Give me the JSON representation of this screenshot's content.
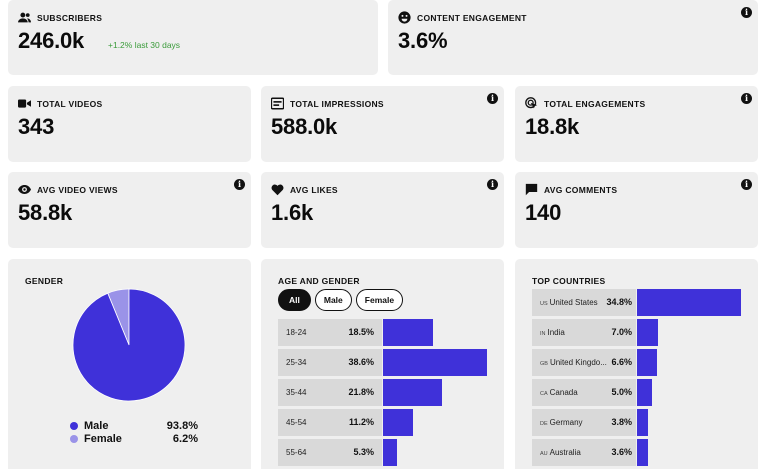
{
  "colors": {
    "accent": "#3f31d9",
    "female": "#9a93e8",
    "delta": "#3a9b3a",
    "card": "#efefef"
  },
  "subscribers": {
    "title": "SUBSCRIBERS",
    "value": "246.0k",
    "delta": "+1.2% last 30 days",
    "icon": "users-icon"
  },
  "content_engagement": {
    "title": "CONTENT ENGAGEMENT",
    "value": "3.6%",
    "icon": "smiley-icon"
  },
  "total_videos": {
    "title": "TOTAL VIDEOS",
    "value": "343",
    "icon": "video-camera-icon"
  },
  "total_impressions": {
    "title": "TOTAL IMPRESSIONS",
    "value": "588.0k",
    "icon": "screen-icon"
  },
  "total_engagements": {
    "title": "TOTAL ENGAGEMENTS",
    "value": "18.8k",
    "icon": "pointer-icon"
  },
  "avg_video_views": {
    "title": "AVG VIDEO VIEWS",
    "value": "58.8k",
    "icon": "eye-icon"
  },
  "avg_likes": {
    "title": "AVG LIKES",
    "value": "1.6k",
    "icon": "heart-icon"
  },
  "avg_comments": {
    "title": "AVG COMMENTS",
    "value": "140",
    "icon": "comment-icon"
  },
  "info_glyph": "i",
  "gender": {
    "title": "GENDER",
    "items": [
      {
        "label": "Male",
        "value": "93.8%"
      },
      {
        "label": "Female",
        "value": "6.2%"
      }
    ]
  },
  "age_gender": {
    "title": "AGE AND GENDER",
    "filters": [
      "All",
      "Male",
      "Female"
    ],
    "active_filter": "All",
    "rows": [
      {
        "label": "18-24",
        "value": "18.5%"
      },
      {
        "label": "25-34",
        "value": "38.6%"
      },
      {
        "label": "35-44",
        "value": "21.8%"
      },
      {
        "label": "45-54",
        "value": "11.2%"
      },
      {
        "label": "55-64",
        "value": "5.3%"
      }
    ]
  },
  "top_countries": {
    "title": "TOP COUNTRIES",
    "rows": [
      {
        "code": "US",
        "name": "United States",
        "value": "34.8%"
      },
      {
        "code": "IN",
        "name": "India",
        "value": "7.0%"
      },
      {
        "code": "GB",
        "name": "United Kingdo...",
        "value": "6.6%"
      },
      {
        "code": "CA",
        "name": "Canada",
        "value": "5.0%"
      },
      {
        "code": "DE",
        "name": "Germany",
        "value": "3.8%"
      },
      {
        "code": "AU",
        "name": "Australia",
        "value": "3.6%"
      }
    ]
  },
  "chart_data": [
    {
      "type": "pie",
      "title": "GENDER",
      "categories": [
        "Male",
        "Female"
      ],
      "values": [
        93.8,
        6.2
      ]
    },
    {
      "type": "bar",
      "title": "AGE AND GENDER",
      "categories": [
        "18-24",
        "25-34",
        "35-44",
        "45-54",
        "55-64"
      ],
      "values": [
        18.5,
        38.6,
        21.8,
        11.2,
        5.3
      ]
    },
    {
      "type": "bar",
      "title": "TOP COUNTRIES",
      "categories": [
        "United States",
        "India",
        "United Kingdo...",
        "Canada",
        "Germany",
        "Australia"
      ],
      "values": [
        34.8,
        7.0,
        6.6,
        5.0,
        3.8,
        3.6
      ]
    }
  ]
}
